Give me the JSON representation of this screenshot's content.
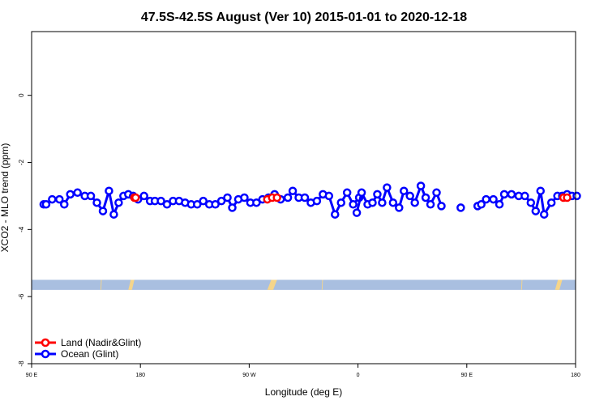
{
  "chart_data": {
    "type": "line",
    "title": "47.5S-42.5S August (Ver 10)   2015-01-01 to 2020-12-18",
    "xlabel": "Longitude (deg E)",
    "ylabel": "XCO2 - MLO trend (ppm)",
    "xlim": [
      90,
      540
    ],
    "ylim": [
      -8,
      1.9
    ],
    "x_ticks": [
      {
        "value": 90,
        "label": "90 E"
      },
      {
        "value": 180,
        "label": "180"
      },
      {
        "value": 270,
        "label": "90 W"
      },
      {
        "value": 360,
        "label": "0"
      },
      {
        "value": 450,
        "label": "90 E"
      },
      {
        "value": 540,
        "label": "180"
      }
    ],
    "y_ticks": [
      {
        "value": 0,
        "label": "0"
      },
      {
        "value": -2,
        "label": "-2"
      },
      {
        "value": -4,
        "label": "-4"
      },
      {
        "value": -6,
        "label": "-6"
      },
      {
        "value": -8,
        "label": "-8"
      }
    ],
    "legend": {
      "position": "bottom-left",
      "entries": [
        {
          "name": "Land (Nadir&Glint)",
          "color": "#ff0000"
        },
        {
          "name": "Ocean (Glint)",
          "color": "#0000ff"
        }
      ]
    },
    "landmask": {
      "y_range": [
        -5.8,
        -5.5
      ],
      "ocean_color": "#a9bfe0",
      "land_color": "#f5d58a",
      "land_ranges": [
        [
          147,
          148
        ],
        [
          170,
          175
        ],
        [
          285,
          293
        ],
        [
          330,
          331
        ],
        [
          495,
          496
        ],
        [
          523,
          529
        ]
      ]
    },
    "series": [
      {
        "name": "Ocean (Glint)",
        "color": "#0000ff",
        "segments": [
          {
            "x": [
              100,
              102,
              107,
              113,
              117,
              122,
              128,
              134,
              139,
              144,
              149,
              154,
              158,
              162,
              166,
              170,
              174,
              178,
              183,
              188,
              192,
              197,
              202,
              207,
              212,
              217,
              222,
              227,
              232,
              237,
              242,
              247,
              252,
              256,
              261,
              266,
              271,
              276,
              281,
              286,
              291,
              296,
              302,
              306,
              311,
              316,
              321,
              326,
              331,
              336,
              341,
              346,
              351,
              356,
              361
            ],
            "y": [
              -3.25,
              -3.25,
              -3.1,
              -3.1,
              -3.25,
              -2.95,
              -2.9,
              -3.0,
              -3.0,
              -3.2,
              -3.45,
              -2.85,
              -3.55,
              -3.2,
              -3.0,
              -2.95,
              -3.0,
              -3.1,
              -3.0,
              -3.15,
              -3.15,
              -3.15,
              -3.25,
              -3.15,
              -3.15,
              -3.2,
              -3.25,
              -3.25,
              -3.15,
              -3.25,
              -3.25,
              -3.15,
              -3.05,
              -3.35,
              -3.1,
              -3.05,
              -3.2,
              -3.2,
              -3.1,
              -3.05,
              -2.95,
              -3.1,
              -3.05,
              -2.85,
              -3.05,
              -3.05,
              -3.2,
              -3.15,
              -2.95,
              -3.0,
              -3.55,
              -3.2,
              -2.9,
              -3.25,
              -3.05
            ]
          },
          {
            "x": [
              359,
              363,
              368,
              372,
              376,
              380,
              384,
              389,
              394,
              398,
              403,
              407,
              412,
              416,
              420,
              425,
              429
            ],
            "y": [
              -3.5,
              -2.9,
              -3.25,
              -3.2,
              -2.95,
              -3.2,
              -2.75,
              -3.2,
              -3.35,
              -2.85,
              -3.0,
              -3.2,
              -2.7,
              -3.05,
              -3.25,
              -2.9,
              -3.3
            ]
          },
          {
            "x": [
              445
            ],
            "y": [
              -3.35
            ]
          },
          {
            "x": [
              459,
              462,
              466,
              472,
              477,
              481,
              487,
              493,
              498,
              503,
              507,
              511,
              514,
              520,
              525,
              529,
              533,
              537,
              541
            ],
            "y": [
              -3.3,
              -3.25,
              -3.1,
              -3.1,
              -3.25,
              -2.95,
              -2.95,
              -3.0,
              -3.0,
              -3.2,
              -3.45,
              -2.85,
              -3.55,
              -3.2,
              -3.0,
              -3.0,
              -2.95,
              -3.0,
              -3.0
            ]
          }
        ]
      },
      {
        "name": "Land (Nadir&Glint)",
        "color": "#ff0000",
        "segments": [
          {
            "x": [
              175,
              176
            ],
            "y": [
              -3.05,
              -3.05
            ]
          },
          {
            "x": [
              285,
              289,
              293
            ],
            "y": [
              -3.1,
              -3.05,
              -3.05
            ]
          },
          {
            "x": [
              530,
              533
            ],
            "y": [
              -3.05,
              -3.05
            ]
          }
        ]
      }
    ]
  }
}
